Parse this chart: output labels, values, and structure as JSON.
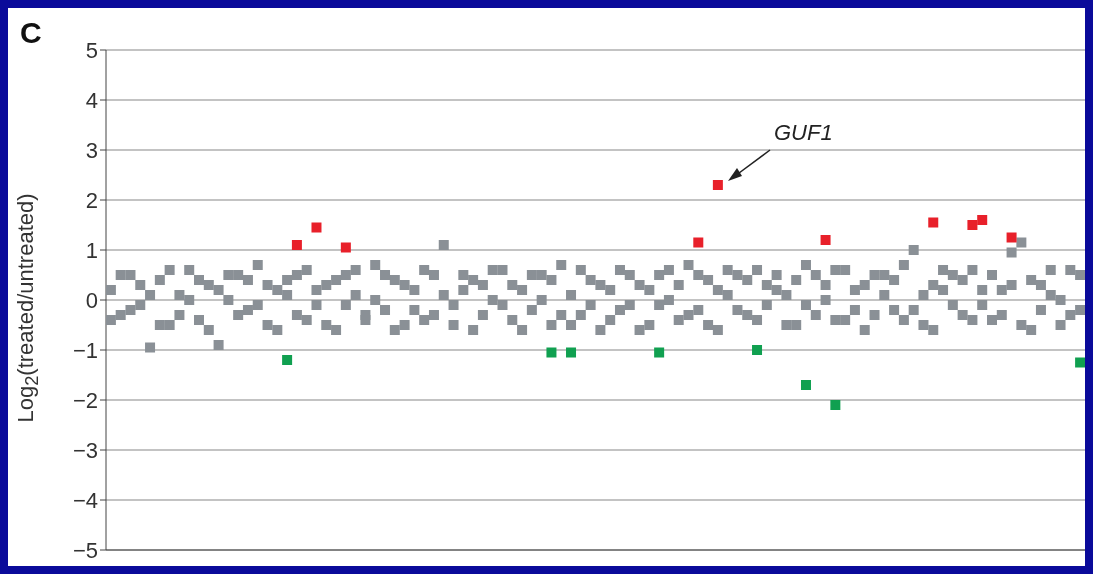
{
  "chart_data": {
    "type": "scatter",
    "annotations": [
      "C",
      "GUF1"
    ],
    "ylabel": "Log$_{2}$(treated/untreated)",
    "categories": [
      null,
      null,
      null,
      null,
      null,
      null,
      null,
      null,
      null,
      null,
      null,
      null,
      null,
      null,
      null,
      null,
      null,
      null,
      null,
      null,
      null,
      null,
      null,
      null,
      null,
      null,
      null,
      null,
      null,
      null,
      null,
      null,
      null,
      null,
      null,
      null,
      null,
      null,
      null,
      null,
      null,
      null,
      null,
      null,
      null,
      null,
      null,
      null,
      null,
      null,
      null,
      null,
      null,
      null,
      null,
      null,
      null,
      null,
      null,
      null,
      null,
      null,
      null,
      null,
      null,
      null,
      null,
      null,
      null,
      null,
      null,
      null,
      null,
      null,
      null,
      null,
      null,
      null,
      null,
      null,
      null,
      null,
      null,
      null,
      null,
      null,
      null,
      null,
      null,
      null,
      null,
      null,
      null,
      null,
      null,
      null,
      null,
      null,
      null,
      null
    ],
    "series": [
      {
        "color": "#8a9096",
        "values": [
          0.2,
          -0.3,
          0.5,
          -0.1,
          -0.95,
          0.4,
          -0.5,
          0.1,
          0.6,
          -0.4,
          0.3,
          -0.9,
          0.0,
          0.5,
          -0.2,
          0.7,
          -0.5,
          0.2,
          0.4,
          -0.3,
          0.6,
          -0.1,
          0.3,
          -0.6,
          0.5,
          0.1,
          -0.4,
          0.7,
          -0.2,
          0.4,
          -0.5,
          0.2,
          0.6,
          -0.3,
          1.1,
          -0.1,
          0.5,
          -0.6,
          0.3,
          0.0,
          0.6,
          -0.4,
          0.2,
          -0.2,
          0.5,
          -0.5,
          0.7,
          0.1,
          -0.3,
          0.4,
          -0.6,
          0.2,
          0.6,
          -0.1,
          0.3,
          -0.5,
          0.5,
          0.0,
          -0.4,
          0.7,
          -0.2,
          0.4,
          -0.6,
          0.1,
          0.5,
          -0.3,
          0.6,
          -0.1,
          0.2,
          -0.5,
          0.4,
          0.7,
          -0.3,
          0.0,
          0.6,
          -0.4,
          0.2,
          -0.6,
          0.5,
          0.1,
          -0.2,
          0.7,
          1.0,
          -0.5,
          0.3,
          0.6,
          -0.1,
          0.4,
          -0.4,
          0.2,
          0.5,
          -0.3,
          0.95,
          1.15,
          -0.6,
          0.3,
          0.1,
          -0.5,
          0.6,
          -0.2
        ]
      },
      {
        "color": "#8a9096",
        "values": [
          -0.4,
          0.5,
          -0.2,
          0.3,
          0.1,
          -0.5,
          0.6,
          -0.3,
          0.0,
          0.4,
          -0.6,
          0.2,
          0.5,
          -0.3,
          0.4,
          -0.1,
          0.3,
          -0.6,
          0.1,
          0.5,
          -0.4,
          0.2,
          -0.5,
          0.4,
          -0.1,
          0.6,
          -0.3,
          0.0,
          0.5,
          -0.6,
          0.3,
          -0.2,
          -0.4,
          0.5,
          0.1,
          -0.5,
          0.2,
          0.4,
          -0.3,
          0.6,
          -0.1,
          0.3,
          -0.6,
          0.5,
          0.0,
          0.4,
          -0.3,
          -0.5,
          0.6,
          -0.1,
          0.3,
          -0.4,
          -0.2,
          0.5,
          -0.6,
          0.2,
          -0.1,
          0.6,
          0.3,
          -0.3,
          0.5,
          -0.5,
          0.2,
          0.6,
          -0.2,
          0.4,
          -0.4,
          0.3,
          0.5,
          0.1,
          -0.5,
          -0.1,
          0.5,
          0.3,
          -0.4,
          0.6,
          -0.2,
          0.3,
          -0.3,
          0.5,
          0.4,
          -0.4,
          -0.2,
          0.1,
          -0.6,
          0.2,
          0.5,
          -0.3,
          0.6,
          -0.1,
          -0.4,
          0.2,
          0.3,
          -0.5,
          0.4,
          -0.2,
          0.6,
          0.0,
          -0.3,
          0.5
        ]
      },
      {
        "color": "#e8202a",
        "values": [
          null,
          null,
          null,
          null,
          null,
          null,
          null,
          null,
          null,
          null,
          null,
          null,
          null,
          null,
          null,
          null,
          null,
          null,
          null,
          1.1,
          null,
          1.45,
          null,
          null,
          1.05,
          null,
          null,
          null,
          null,
          null,
          null,
          null,
          null,
          null,
          null,
          null,
          null,
          null,
          null,
          null,
          null,
          null,
          null,
          null,
          null,
          null,
          null,
          null,
          null,
          null,
          null,
          null,
          null,
          null,
          null,
          null,
          null,
          null,
          null,
          null,
          1.15,
          null,
          2.3,
          null,
          null,
          null,
          null,
          null,
          null,
          null,
          null,
          null,
          null,
          1.2,
          null,
          null,
          null,
          null,
          null,
          null,
          null,
          null,
          null,
          null,
          1.55,
          null,
          null,
          null,
          1.5,
          1.6,
          null,
          null,
          1.25,
          null,
          null,
          null,
          null,
          null,
          null,
          null
        ]
      },
      {
        "color": "#10a050",
        "values": [
          null,
          null,
          null,
          null,
          null,
          null,
          null,
          null,
          null,
          null,
          null,
          null,
          null,
          null,
          null,
          null,
          null,
          null,
          -1.2,
          null,
          null,
          null,
          null,
          null,
          null,
          null,
          null,
          null,
          null,
          null,
          null,
          null,
          null,
          null,
          null,
          null,
          null,
          null,
          null,
          null,
          null,
          null,
          null,
          null,
          null,
          -1.05,
          null,
          -1.05,
          null,
          null,
          null,
          null,
          null,
          null,
          null,
          null,
          -1.05,
          null,
          null,
          null,
          null,
          null,
          null,
          null,
          null,
          null,
          -1.0,
          null,
          null,
          null,
          null,
          -1.7,
          null,
          null,
          -2.1,
          null,
          null,
          null,
          null,
          null,
          null,
          null,
          null,
          null,
          null,
          null,
          null,
          null,
          null,
          null,
          null,
          null,
          null,
          null,
          null,
          null,
          null,
          null,
          null,
          -1.25
        ]
      }
    ],
    "ylim": [
      -5,
      5
    ],
    "yticks": [
      {
        "value": -5,
        "label": "−5"
      },
      {
        "value": -4,
        "label": "−4"
      },
      {
        "value": -3,
        "label": "−3"
      },
      {
        "value": -2,
        "label": "−2"
      },
      {
        "value": -1,
        "label": "−1"
      },
      0,
      1,
      2,
      3,
      4,
      5
    ],
    "grid": "y",
    "tick_labels": "y",
    "marker": "square"
  }
}
